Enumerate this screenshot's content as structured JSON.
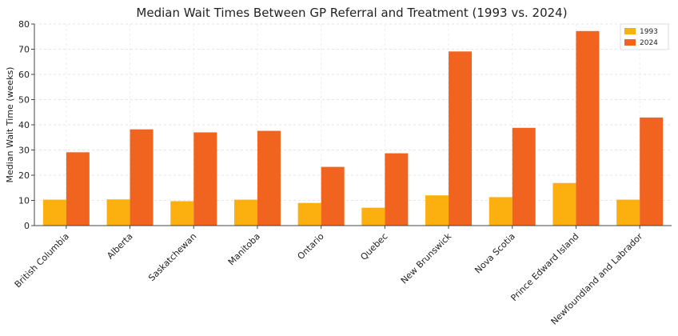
{
  "chart_data": {
    "type": "bar",
    "title": "Median Wait Times Between GP Referral and Treatment (1993 vs. 2024)",
    "xlabel": "",
    "ylabel": "Median Wait Time (weeks)",
    "ylim": [
      0,
      80
    ],
    "yticks": [
      0,
      10,
      20,
      30,
      40,
      50,
      60,
      70,
      80
    ],
    "grid": true,
    "legend_position": "top-right",
    "categories": [
      "British Columbia",
      "Alberta",
      "Saskatchewan",
      "Manitoba",
      "Ontario",
      "Quebec",
      "New Brunswick",
      "Nova Scotia",
      "Prince Edward Island",
      "Newfoundland and Labrador"
    ],
    "series": [
      {
        "name": "1993",
        "color": "#fbb00f",
        "values": [
          10.3,
          10.4,
          9.7,
          10.3,
          9.0,
          7.1,
          12.0,
          11.3,
          16.9,
          10.3
        ]
      },
      {
        "name": "2024",
        "color": "#f06420",
        "values": [
          29.1,
          38.2,
          37.0,
          37.6,
          23.3,
          28.7,
          69.1,
          38.8,
          77.2,
          42.9
        ]
      }
    ]
  }
}
